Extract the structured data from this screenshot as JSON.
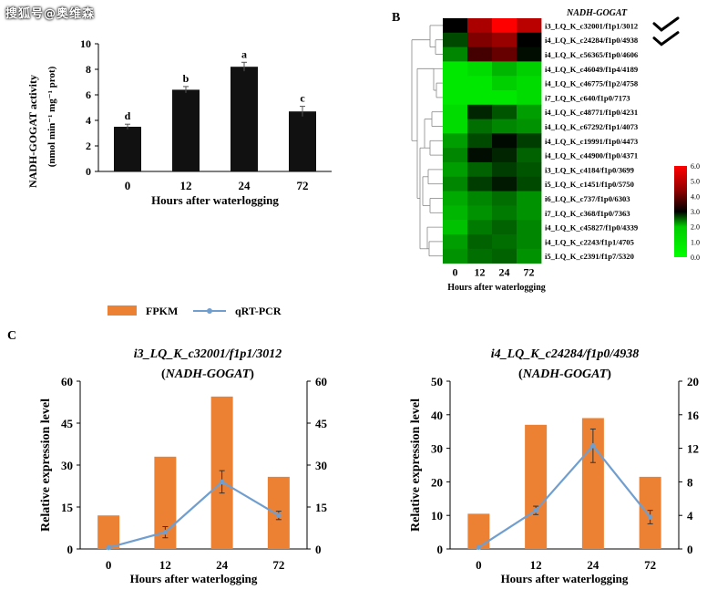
{
  "watermark": "搜狐号@奥维森",
  "panel_labels": {
    "b": "B",
    "c": "C"
  },
  "legend": {
    "fpkm": "FPKM",
    "qrt": "qRT-PCR"
  },
  "colors": {
    "bar_black": "#111111",
    "fpkm_orange": "#ED8133",
    "qrt_blue": "#6F9ECF"
  },
  "chart_data": [
    {
      "id": "A",
      "type": "bar",
      "categories": [
        "0",
        "12",
        "24",
        "72"
      ],
      "values": [
        3.5,
        6.4,
        8.2,
        4.7
      ],
      "errors": [
        0.2,
        0.25,
        0.35,
        0.4
      ],
      "letters": [
        "d",
        "b",
        "a",
        "c"
      ],
      "ylabel_line1": "NADH-GOGAT activity",
      "ylabel_line2": "(nmol min⁻¹ mg⁻¹ prot)",
      "xlabel": "Hours after waterlogging",
      "ylim": [
        0,
        10
      ],
      "yticks": [
        "0",
        "2",
        "4",
        "6",
        "8",
        "10"
      ],
      "grid": false
    },
    {
      "id": "B",
      "type": "heatmap",
      "title": "NADH-GOGAT",
      "columns": [
        "0",
        "12",
        "24",
        "72"
      ],
      "rows": [
        "i3_LQ_K_c32001/f1p1/3012",
        "i4_LQ_K_c24284/f1p0/4938",
        "i4_LQ_K_c56365/f1p0/4606",
        "i4_LQ_K_c46049/f1p4/4189",
        "i4_LQ_K_c46775/f1p2/4758",
        "i7_LQ_K_c640/f1p0/7173",
        "i4_LQ_K_c48771/f1p0/4231",
        "i4_LQ_K_c67292/f1p1/4073",
        "i4_LQ_K_c19991/f1p0/4473",
        "i4_LQ_K_c44900/f1p0/4371",
        "i3_LQ_K_c4184/f1p0/3699",
        "i5_LQ_K_c1451/f1p0/5750",
        "i6_LQ_K_c737/f1p0/6303",
        "i7_LQ_K_c368/f1p0/7363",
        "i4_LQ_K_c45827/f1p0/4339",
        "i4_LQ_K_c2243/f1p1/4705",
        "i5_LQ_K_c2391/f1p7/5320"
      ],
      "values": [
        [
          3.0,
          5.0,
          6.0,
          5.2
        ],
        [
          1.5,
          4.5,
          4.8,
          3.0
        ],
        [
          1.0,
          3.8,
          4.2,
          2.0
        ],
        [
          0.2,
          0.3,
          0.6,
          0.4
        ],
        [
          0.2,
          0.2,
          0.4,
          0.3
        ],
        [
          0.2,
          0.2,
          0.2,
          0.3
        ],
        [
          0.3,
          1.8,
          1.4,
          0.8
        ],
        [
          0.3,
          1.2,
          1.0,
          0.9
        ],
        [
          0.8,
          1.5,
          2.2,
          1.6
        ],
        [
          1.0,
          2.0,
          1.8,
          1.3
        ],
        [
          0.8,
          1.3,
          1.6,
          1.4
        ],
        [
          1.0,
          1.6,
          1.9,
          1.5
        ],
        [
          0.7,
          1.0,
          1.2,
          0.9
        ],
        [
          0.6,
          0.9,
          1.1,
          0.9
        ],
        [
          0.5,
          1.1,
          1.3,
          1.0
        ],
        [
          0.8,
          1.3,
          1.2,
          1.0
        ],
        [
          0.9,
          1.2,
          1.3,
          0.9
        ]
      ],
      "highlight_rows": [
        0,
        1
      ],
      "xlabel": "Hours after waterlogging",
      "scale": {
        "min": 0,
        "max": 6,
        "ticks": [
          "0.0",
          "1.0",
          "2.0",
          "3.0",
          "4.0",
          "5.0",
          "6.0"
        ]
      }
    },
    {
      "id": "C1",
      "type": "bar+line",
      "title_line1": "i3_LQ_K_c32001/f1p1/3012",
      "title_line2": "NADH-GOGAT",
      "categories": [
        "0",
        "12",
        "24",
        "72"
      ],
      "series": [
        {
          "name": "FPKM",
          "type": "bar",
          "values": [
            12,
            33,
            54.5,
            25.8
          ]
        },
        {
          "name": "qRT-PCR",
          "type": "line",
          "values": [
            0.5,
            6,
            24,
            12
          ],
          "errors": [
            0,
            2,
            4,
            1.5
          ]
        }
      ],
      "ylabel": "Relative expression level",
      "xlabel": "Hours after waterlogging",
      "ylim_left": [
        0,
        60
      ],
      "yticks_left": [
        "0",
        "15",
        "30",
        "45",
        "60"
      ],
      "ylim_right": [
        0,
        60
      ],
      "yticks_right": [
        "0",
        "15",
        "30",
        "45",
        "60"
      ]
    },
    {
      "id": "C2",
      "type": "bar+line",
      "title_line1": "i4_LQ_K_c24284/f1p0/4938",
      "title_line2": "NADH-GOGAT",
      "categories": [
        "0",
        "12",
        "24",
        "72"
      ],
      "series": [
        {
          "name": "FPKM",
          "type": "bar",
          "values": [
            10.5,
            37,
            39,
            21.5
          ]
        },
        {
          "name": "qRT-PCR",
          "type": "line",
          "values": [
            0.2,
            4.6,
            12.3,
            3.8
          ],
          "errors": [
            0,
            0.5,
            2,
            0.8
          ]
        }
      ],
      "ylabel": "Relative expression level",
      "xlabel": "Hours after waterlogging",
      "ylim_left": [
        0,
        50
      ],
      "yticks_left": [
        "0",
        "10",
        "20",
        "30",
        "40",
        "50"
      ],
      "ylim_right": [
        0,
        20
      ],
      "yticks_right": [
        "0",
        "4",
        "8",
        "12",
        "16",
        "20"
      ]
    }
  ]
}
